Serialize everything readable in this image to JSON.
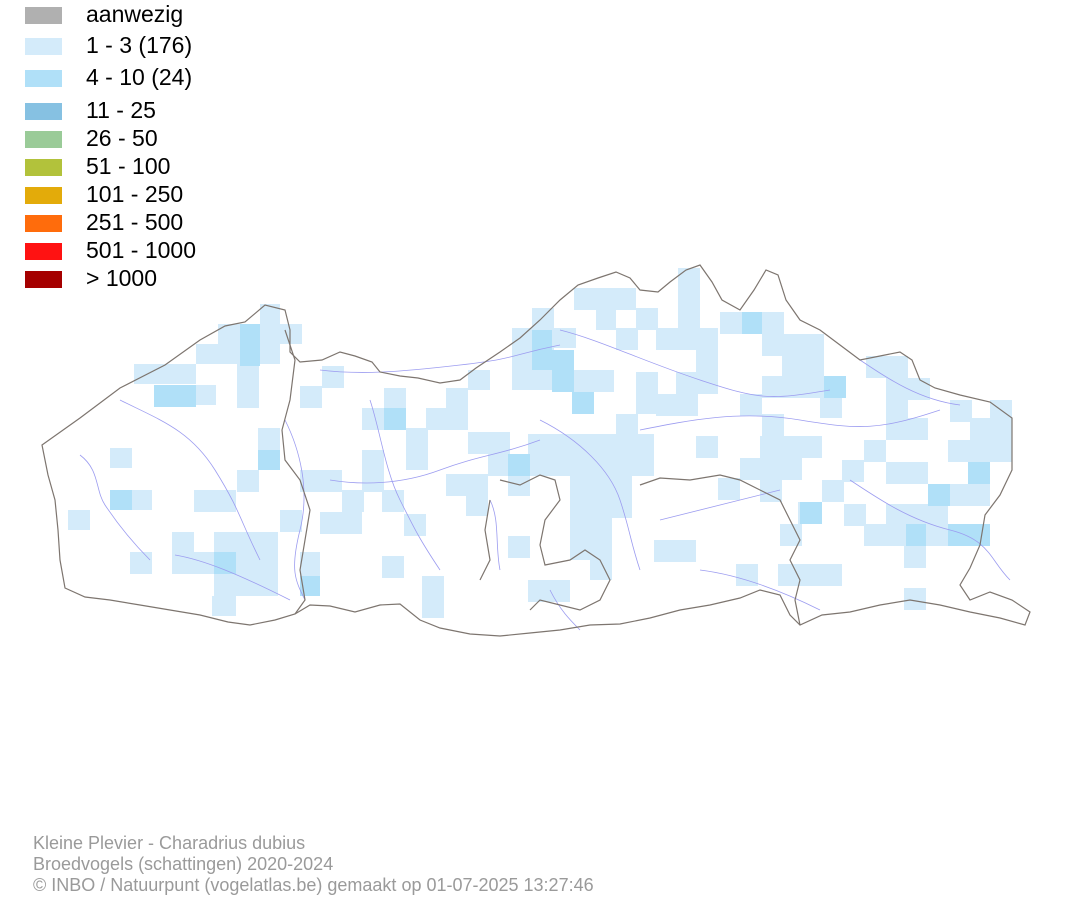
{
  "legend": [
    {
      "label": "aanwezig",
      "color": "#b0b0b0"
    },
    {
      "label": "1 - 3 (176)",
      "color": "#d4ebfa"
    },
    {
      "label": "4 - 10 (24)",
      "color": "#b0e0f8"
    },
    {
      "label": "11 - 25",
      "color": "#86c1e2"
    },
    {
      "label": "26 - 50",
      "color": "#9acb98"
    },
    {
      "label": "51 - 100",
      "color": "#b2c23b"
    },
    {
      "label": "101 - 250",
      "color": "#e3ab0a"
    },
    {
      "label": "251 - 500",
      "color": "#ff6c0c"
    },
    {
      "label": "501 - 1000",
      "color": "#ff1212"
    },
    {
      "label": "> 1000",
      "color": "#a50000"
    }
  ],
  "map": {
    "border_color": "#7d756f",
    "river_color": "#9c9cf0",
    "cell_colors": {
      "low": "#d4ebfa",
      "mid": "#b0e0f8"
    }
  },
  "footer": {
    "line1": "Kleine Plevier - Charadrius dubius",
    "line2": "Broedvogels (schattingen) 2020-2024",
    "line3": "© INBO / Natuurpunt (vogelatlas.be) gemaakt op 01-07-2025 13:27:46"
  }
}
